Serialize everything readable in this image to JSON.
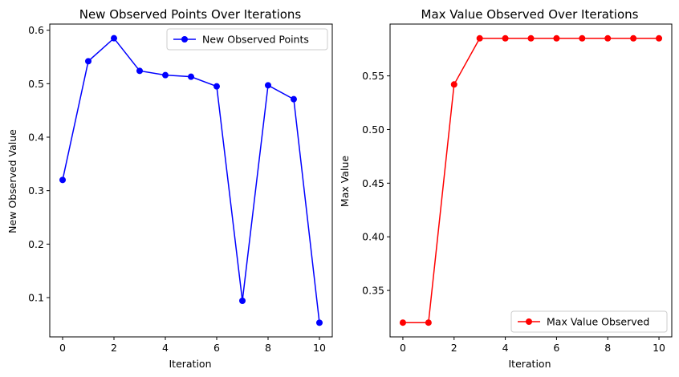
{
  "chart_data": [
    {
      "type": "line",
      "title": "New Observed Points Over Iterations",
      "xlabel": "Iteration",
      "ylabel": "New Observed Value",
      "x": [
        0,
        1,
        2,
        3,
        4,
        5,
        6,
        7,
        8,
        9,
        10
      ],
      "series": [
        {
          "name": "New Observed Points",
          "color": "#0000ff",
          "values": [
            0.32,
            0.542,
            0.585,
            0.524,
            0.516,
            0.513,
            0.495,
            0.094,
            0.497,
            0.471,
            0.053
          ]
        }
      ],
      "xlim": [
        -0.5,
        10.5
      ],
      "ylim": [
        0.0265,
        0.6115
      ],
      "xticks": [
        0,
        2,
        4,
        6,
        8,
        10
      ],
      "xtick_labels": [
        "0",
        "2",
        "4",
        "6",
        "8",
        "10"
      ],
      "yticks": [
        0.1,
        0.2,
        0.3,
        0.4,
        0.5,
        0.6
      ],
      "ytick_labels": [
        "0.1",
        "0.2",
        "0.3",
        "0.4",
        "0.5",
        "0.6"
      ],
      "grid": false,
      "legend": "top-right"
    },
    {
      "type": "line",
      "title": "Max Value Observed Over Iterations",
      "xlabel": "Iteration",
      "ylabel": "Max Value",
      "x": [
        0,
        1,
        2,
        3,
        4,
        5,
        6,
        7,
        8,
        9,
        10
      ],
      "series": [
        {
          "name": "Max Value Observed",
          "color": "#ff0000",
          "values": [
            0.32,
            0.32,
            0.542,
            0.585,
            0.585,
            0.585,
            0.585,
            0.585,
            0.585,
            0.585,
            0.585
          ]
        }
      ],
      "xlim": [
        -0.5,
        10.5
      ],
      "ylim": [
        0.3067,
        0.5983
      ],
      "xticks": [
        0,
        2,
        4,
        6,
        8,
        10
      ],
      "xtick_labels": [
        "0",
        "2",
        "4",
        "6",
        "8",
        "10"
      ],
      "yticks": [
        0.35,
        0.4,
        0.45,
        0.5,
        0.55
      ],
      "ytick_labels": [
        "0.35",
        "0.40",
        "0.45",
        "0.50",
        "0.55"
      ],
      "grid": false,
      "legend": "bottom-right"
    }
  ]
}
